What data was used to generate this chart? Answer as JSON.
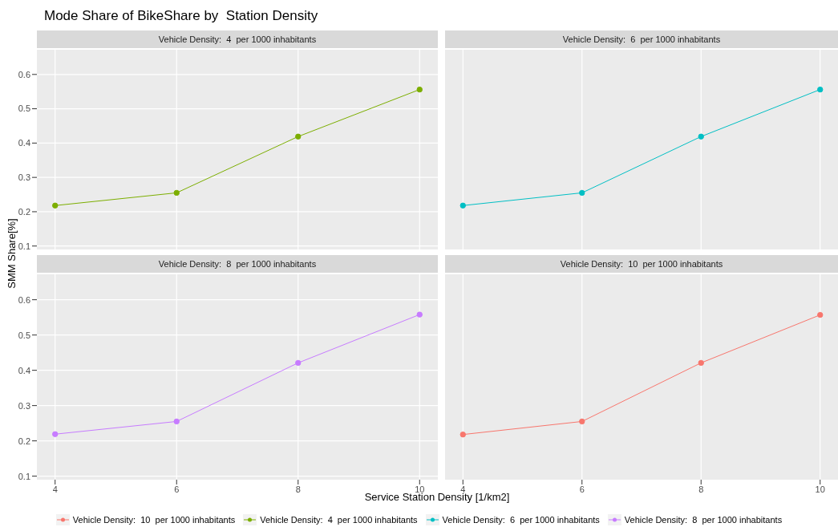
{
  "chart_data": [
    {
      "type": "line",
      "title": "Mode Share of BikeShare by  Station Density",
      "subtitle": "Vehicle Density:  4  per 1000 inhabitants",
      "ylabel": "SMM Share[%]",
      "x": [
        4,
        6,
        8,
        10
      ],
      "series": [
        {
          "name": "Vehicle Density:  4  per 1000 inhabitants",
          "color": "#7cae00",
          "values": [
            0.218,
            0.255,
            0.419,
            0.556
          ]
        }
      ],
      "xlim": [
        3.7,
        10.3
      ],
      "xticks": [
        4,
        6,
        8,
        10
      ],
      "ylim": [
        0.09,
        0.672
      ],
      "yticks": [
        0.1,
        0.2,
        0.3,
        0.4,
        0.5,
        0.6
      ],
      "tick_labels": "y",
      "grid": true,
      "marker": "circle",
      "legend": "bottom"
    },
    {
      "type": "line",
      "subtitle": "Vehicle Density:  6  per 1000 inhabitants",
      "x": [
        4,
        6,
        8,
        10
      ],
      "series": [
        {
          "name": "Vehicle Density:  6  per 1000 inhabitants",
          "color": "#00bfc4",
          "values": [
            0.218,
            0.255,
            0.419,
            0.556
          ]
        }
      ],
      "xlim": [
        3.7,
        10.3
      ],
      "xticks": [
        4,
        6,
        8,
        10
      ],
      "ylim": [
        0.09,
        0.672
      ],
      "yticks": [
        0.1,
        0.2,
        0.3,
        0.4,
        0.5,
        0.6
      ],
      "tick_labels": false,
      "grid": true,
      "marker": "circle",
      "legend": "bottom"
    },
    {
      "type": "line",
      "subtitle": "Vehicle Density:  8  per 1000 inhabitants",
      "xlabel": "Service Station Density [1/km2]",
      "x": [
        4,
        6,
        8,
        10
      ],
      "series": [
        {
          "name": "Vehicle Density:  8  per 1000 inhabitants",
          "color": "#c77cff",
          "values": [
            0.219,
            0.255,
            0.421,
            0.558
          ]
        }
      ],
      "xlim": [
        3.7,
        10.3
      ],
      "xticks": [
        4,
        6,
        8,
        10
      ],
      "ylim": [
        0.09,
        0.672
      ],
      "yticks": [
        0.1,
        0.2,
        0.3,
        0.4,
        0.5,
        0.6
      ],
      "grid": true,
      "marker": "circle",
      "legend": "bottom"
    },
    {
      "type": "line",
      "subtitle": "Vehicle Density:  10  per 1000 inhabitants",
      "x": [
        4,
        6,
        8,
        10
      ],
      "series": [
        {
          "name": "Vehicle Density:  10  per 1000 inhabitants",
          "color": "#f8766d",
          "values": [
            0.218,
            0.255,
            0.421,
            0.557
          ]
        }
      ],
      "xlim": [
        3.7,
        10.3
      ],
      "xticks": [
        4,
        6,
        8,
        10
      ],
      "ylim": [
        0.09,
        0.672
      ],
      "yticks": [
        0.1,
        0.2,
        0.3,
        0.4,
        0.5,
        0.6
      ],
      "tick_labels": "x",
      "grid": true,
      "marker": "circle",
      "legend": "bottom"
    }
  ]
}
